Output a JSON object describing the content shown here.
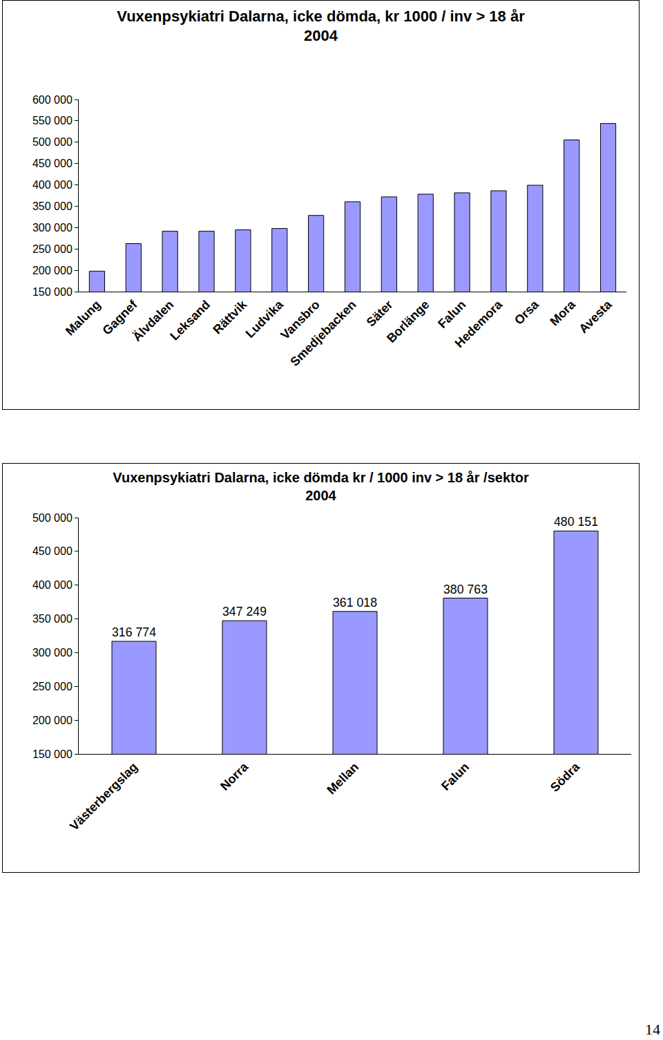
{
  "chart_data": [
    {
      "type": "bar",
      "title": "Vuxenpsykiatri Dalarna, icke dömda, kr 1000 / inv > 18 år\n2004",
      "categories": [
        "Malung",
        "Gagnef",
        "Älvdalen",
        "Leksand",
        "Rättvik",
        "Ludvika",
        "Vansbro",
        "Smedjebacken",
        "Säter",
        "Borlänge",
        "Falun",
        "Hedemora",
        "Orsa",
        "Mora",
        "Avesta"
      ],
      "values": [
        198000,
        262500,
        291500,
        291500,
        294700,
        297900,
        328500,
        360600,
        371900,
        378300,
        381500,
        386300,
        399200,
        505300,
        543900
      ],
      "color": "#9999ff",
      "ylim": [
        150000,
        600000
      ],
      "yticks": [
        {
          "value": 150000,
          "label": "150 000"
        },
        {
          "value": 200000,
          "label": "200 000"
        },
        {
          "value": 250000,
          "label": "250 000"
        },
        {
          "value": 300000,
          "label": "300 000"
        },
        {
          "value": 350000,
          "label": "350 000"
        },
        {
          "value": 400000,
          "label": "400 000"
        },
        {
          "value": 450000,
          "label": "450 000"
        },
        {
          "value": 500000,
          "label": "500 000"
        },
        {
          "value": 550000,
          "label": "550 000"
        },
        {
          "value": 600000,
          "label": "600 000"
        }
      ],
      "grid": false,
      "data_labels": false
    },
    {
      "type": "bar",
      "title": "Vuxenpsykiatri Dalarna, icke dömda kr / 1000 inv > 18 år /sektor\n2004",
      "categories": [
        "Västerbergslag",
        "Norra",
        "Mellan",
        "Falun",
        "Södra"
      ],
      "values": [
        316774,
        347249,
        361018,
        380763,
        480151
      ],
      "value_labels": [
        "316 774",
        "347 249",
        "361 018",
        "380 763",
        "480 151"
      ],
      "color": "#9999ff",
      "ylim": [
        150000,
        500000
      ],
      "yticks": [
        {
          "value": 150000,
          "label": "150 000"
        },
        {
          "value": 200000,
          "label": "200 000"
        },
        {
          "value": 250000,
          "label": "250 000"
        },
        {
          "value": 300000,
          "label": "300 000"
        },
        {
          "value": 350000,
          "label": "350 000"
        },
        {
          "value": 400000,
          "label": "400 000"
        },
        {
          "value": 450000,
          "label": "450 000"
        },
        {
          "value": 500000,
          "label": "500 000"
        }
      ],
      "grid": false,
      "data_labels": true
    }
  ],
  "page_number": "14"
}
